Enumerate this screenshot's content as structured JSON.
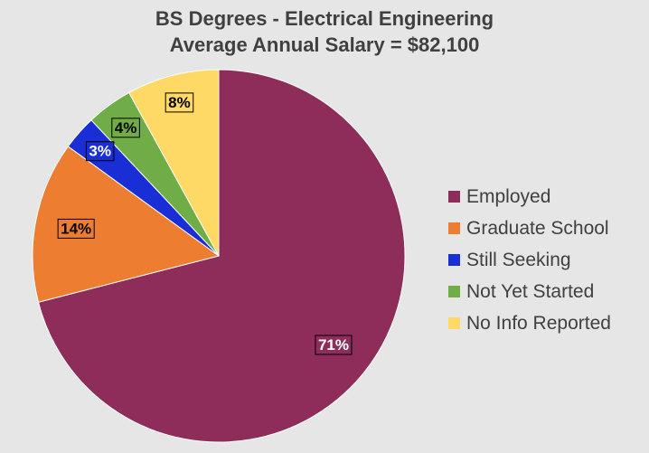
{
  "chart_data": {
    "type": "pie",
    "title": "BS Degrees - Electrical Engineering",
    "subtitle": "Average Annual Salary = $82,100",
    "legend_position": "right",
    "start_angle_deg": 0,
    "direction": "clockwise",
    "slices": [
      {
        "name": "Employed",
        "value": 71,
        "label": "71%",
        "color": "#8e2d5a",
        "label_text_color": "#ffffff"
      },
      {
        "name": "Graduate School",
        "value": 14,
        "label": "14%",
        "color": "#ed7d31",
        "label_text_color": "#000000"
      },
      {
        "name": "Still Seeking",
        "value": 3,
        "label": "3%",
        "color": "#1a2ed6",
        "label_text_color": "#ffffff"
      },
      {
        "name": "Not Yet Started",
        "value": 4,
        "label": "4%",
        "color": "#70ad47",
        "label_text_color": "#000000"
      },
      {
        "name": "No Info Reported",
        "value": 8,
        "label": "8%",
        "color": "#ffd966",
        "label_text_color": "#000000"
      }
    ]
  }
}
